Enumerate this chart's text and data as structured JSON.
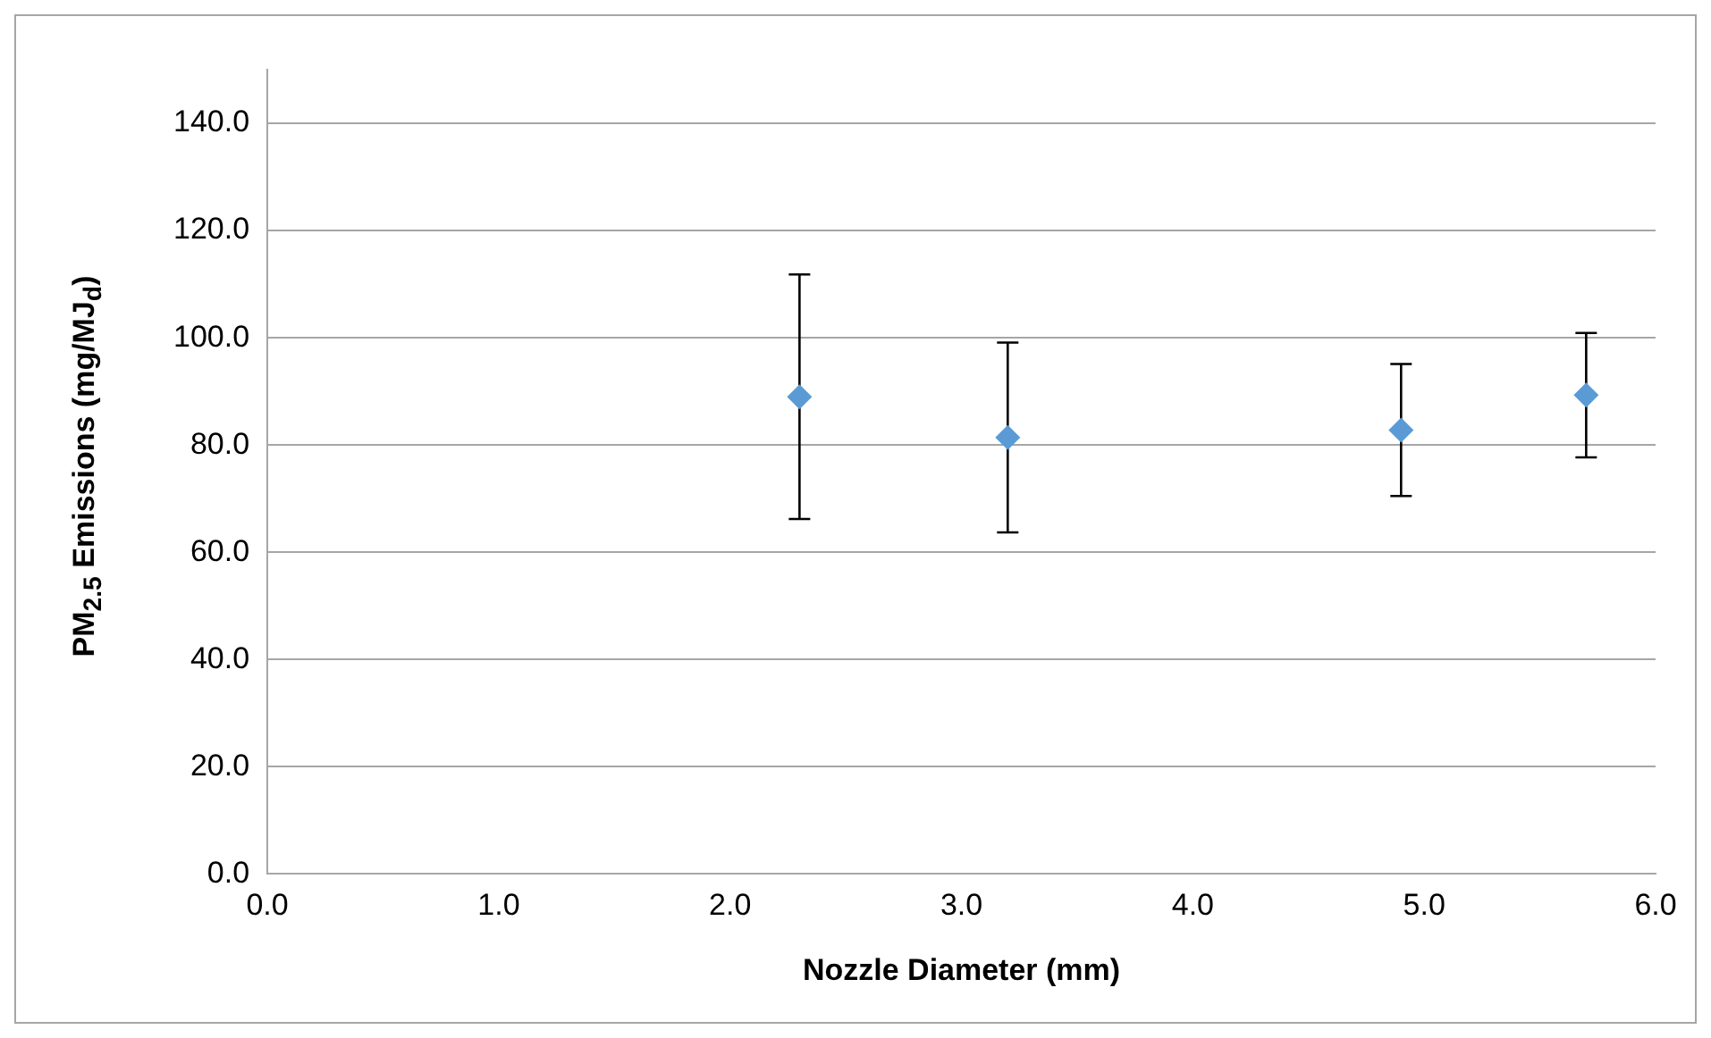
{
  "chart_data": {
    "type": "scatter",
    "xlabel": "Nozzle Diameter (mm)",
    "ylabel": "PM$_{2.5}$ Emissions (mg/MJ$_{d}$)",
    "x": [
      2.3,
      3.2,
      4.9,
      5.7
    ],
    "series": [
      {
        "color": "#5b9bd5",
        "values": [
          89.0,
          81.4,
          82.8,
          89.3
        ],
        "errors": [
          22.8,
          17.7,
          12.3,
          11.6
        ]
      }
    ],
    "xlim": [
      0,
      6
    ],
    "xticks": [
      {
        "value": 0,
        "label": "0.0"
      },
      {
        "value": 1,
        "label": "1.0"
      },
      {
        "value": 2,
        "label": "2.0"
      },
      {
        "value": 3,
        "label": "3.0"
      },
      {
        "value": 4,
        "label": "4.0"
      },
      {
        "value": 5,
        "label": "5.0"
      },
      {
        "value": 6,
        "label": "6.0"
      }
    ],
    "ylim": [
      0,
      150
    ],
    "yticks": [
      {
        "value": 0,
        "label": "0.0"
      },
      {
        "value": 20,
        "label": "20.0"
      },
      {
        "value": 40,
        "label": "40.0"
      },
      {
        "value": 60,
        "label": "60.0"
      },
      {
        "value": 80,
        "label": "80.0"
      },
      {
        "value": 100,
        "label": "100.0"
      },
      {
        "value": 120,
        "label": "120.0"
      },
      {
        "value": 140,
        "label": "140.0"
      }
    ],
    "grid": "y",
    "marker": "diamond",
    "legend": false
  }
}
